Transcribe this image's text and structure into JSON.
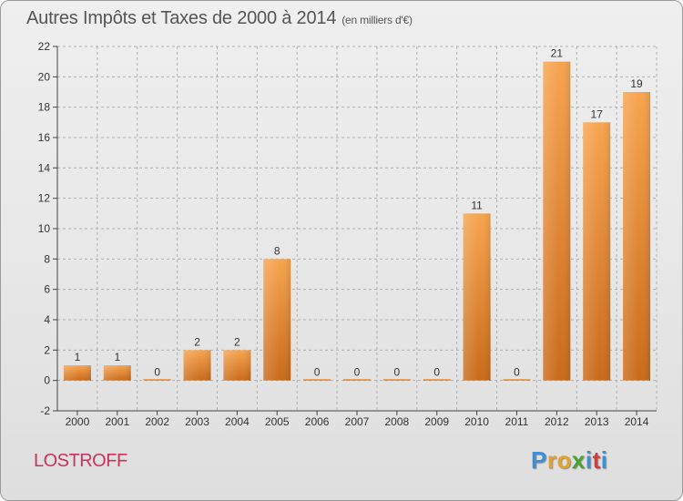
{
  "header": {
    "title": "Autres Impôts et Taxes de 2000 à 2014",
    "subtitle": "(en milliers d'€)"
  },
  "footer": {
    "commune": "LOSTROFF",
    "brand": "Proxiti"
  },
  "colors": {
    "bar_top": "#f7a44e",
    "bar_bottom": "#c96a1a",
    "axis": "#444444",
    "grid": "#b0b0b0",
    "commune": "#c8345a"
  },
  "chart_data": {
    "type": "bar",
    "title": "Autres Impôts et Taxes de 2000 à 2014",
    "subtitle": "(en milliers d'€)",
    "xlabel": "",
    "ylabel": "",
    "categories": [
      "2000",
      "2001",
      "2002",
      "2003",
      "2004",
      "2005",
      "2006",
      "2007",
      "2008",
      "2009",
      "2010",
      "2011",
      "2012",
      "2013",
      "2014"
    ],
    "values": [
      1,
      1,
      0,
      2,
      2,
      8,
      0,
      0,
      0,
      0,
      11,
      0,
      21,
      17,
      19
    ],
    "data_labels": [
      "1",
      "1",
      "0",
      "2",
      "2",
      "8",
      "0",
      "0",
      "0",
      "0",
      "11",
      "0",
      "21",
      "17",
      "19"
    ],
    "ylim": [
      -2,
      22
    ],
    "yticks": [
      -2,
      0,
      2,
      4,
      6,
      8,
      10,
      12,
      14,
      16,
      18,
      20,
      22
    ],
    "grid": "horizontal dashed",
    "legend": "none"
  }
}
